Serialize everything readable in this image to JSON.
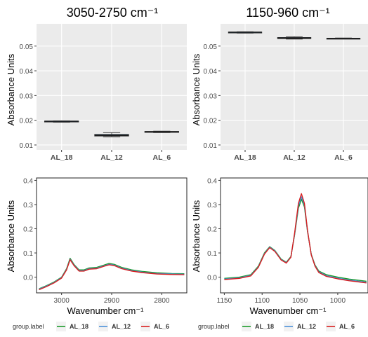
{
  "colors": {
    "panel_bg": "#ebebeb",
    "grid_major": "#ffffff",
    "axis_text": "#4d4d4d",
    "title_text": "#000000",
    "box_outline": "#333333",
    "box_fill": "#2c5f8a",
    "AL_18": "#1a9a2a",
    "AL_12": "#4a90d9",
    "AL_6": "#d81e1e"
  },
  "chart_data": [
    {
      "type": "box",
      "title": "3050-2750 cm⁻¹",
      "xlabel": "",
      "ylabel": "Absorbance Units",
      "categories": [
        "AL_18",
        "AL_12",
        "AL_6"
      ],
      "ylim": [
        0.008,
        0.059
      ],
      "yticks": [
        0.01,
        0.02,
        0.03,
        0.04,
        0.05
      ],
      "ytick_labels": [
        "0.01",
        "0.02",
        "0.03",
        "0.04",
        "0.05"
      ],
      "grid": true,
      "boxes": [
        {
          "category": "AL_18",
          "min": 0.0192,
          "q1": 0.0195,
          "median": 0.0196,
          "q3": 0.0197,
          "max": 0.0198
        },
        {
          "category": "AL_12",
          "min": 0.0133,
          "q1": 0.0136,
          "median": 0.0139,
          "q3": 0.0143,
          "max": 0.015
        },
        {
          "category": "AL_6",
          "min": 0.015,
          "q1": 0.0152,
          "median": 0.0153,
          "q3": 0.0155,
          "max": 0.0156
        }
      ]
    },
    {
      "type": "box",
      "title": "1150-960 cm⁻¹",
      "xlabel": "",
      "ylabel": "Absorbance Units",
      "categories": [
        "AL_18",
        "AL_12",
        "AL_6"
      ],
      "ylim": [
        0.008,
        0.059
      ],
      "yticks": [
        0.01,
        0.02,
        0.03,
        0.04,
        0.05
      ],
      "ytick_labels": [
        "0.01",
        "0.02",
        "0.03",
        "0.04",
        "0.05"
      ],
      "grid": true,
      "boxes": [
        {
          "category": "AL_18",
          "min": 0.0552,
          "q1": 0.0555,
          "median": 0.0556,
          "q3": 0.0557,
          "max": 0.0558
        },
        {
          "category": "AL_12",
          "min": 0.0528,
          "q1": 0.053,
          "median": 0.0532,
          "q3": 0.0535,
          "max": 0.0538
        },
        {
          "category": "AL_6",
          "min": 0.0529,
          "q1": 0.053,
          "median": 0.0531,
          "q3": 0.0532,
          "max": 0.0533
        }
      ]
    },
    {
      "type": "line",
      "title": "",
      "xlabel": "Wavenumber cm⁻¹",
      "ylabel": "Absorbance Units",
      "xlim": [
        3050,
        2750
      ],
      "ylim": [
        -0.065,
        0.41
      ],
      "xticks": [
        3000,
        2900,
        2800
      ],
      "xtick_labels": [
        "3000",
        "2900",
        "2800"
      ],
      "yticks": [
        0.0,
        0.1,
        0.2,
        0.3,
        0.4
      ],
      "ytick_labels": [
        "0.0",
        "0.1",
        "0.2",
        "0.3",
        "0.4"
      ],
      "grid": false,
      "series": [
        {
          "name": "AL_18",
          "x": [
            3045,
            3030,
            3015,
            3000,
            2990,
            2983,
            2975,
            2965,
            2955,
            2945,
            2930,
            2915,
            2905,
            2895,
            2880,
            2860,
            2840,
            2810,
            2780,
            2755
          ],
          "y": [
            -0.048,
            -0.035,
            -0.02,
            0.0,
            0.035,
            0.078,
            0.052,
            0.03,
            0.03,
            0.038,
            0.04,
            0.05,
            0.057,
            0.053,
            0.04,
            0.03,
            0.024,
            0.018,
            0.015,
            0.014
          ]
        },
        {
          "name": "AL_12",
          "x": [
            3045,
            3030,
            3015,
            3000,
            2990,
            2983,
            2975,
            2965,
            2955,
            2945,
            2930,
            2915,
            2905,
            2895,
            2880,
            2860,
            2840,
            2810,
            2780,
            2755
          ],
          "y": [
            -0.05,
            -0.037,
            -0.022,
            -0.002,
            0.032,
            0.074,
            0.049,
            0.027,
            0.027,
            0.035,
            0.037,
            0.047,
            0.053,
            0.05,
            0.037,
            0.027,
            0.021,
            0.015,
            0.013,
            0.012
          ]
        },
        {
          "name": "AL_6",
          "x": [
            3045,
            3030,
            3015,
            3000,
            2990,
            2983,
            2975,
            2965,
            2955,
            2945,
            2930,
            2915,
            2905,
            2895,
            2880,
            2860,
            2840,
            2810,
            2780,
            2755
          ],
          "y": [
            -0.052,
            -0.039,
            -0.024,
            -0.004,
            0.03,
            0.072,
            0.047,
            0.025,
            0.025,
            0.033,
            0.035,
            0.045,
            0.051,
            0.048,
            0.035,
            0.025,
            0.019,
            0.013,
            0.011,
            0.01
          ]
        }
      ]
    },
    {
      "type": "line",
      "title": "",
      "xlabel": "Wavenumber cm⁻¹",
      "ylabel": "Absorbance Units",
      "xlim": [
        1155,
        960
      ],
      "ylim": [
        -0.065,
        0.41
      ],
      "xticks": [
        1150,
        1100,
        1050,
        1000
      ],
      "xtick_labels": [
        "1150",
        "1100",
        "1050",
        "1000"
      ],
      "yticks": [
        0.0,
        0.1,
        0.2,
        0.3,
        0.4
      ],
      "ytick_labels": [
        "0.0",
        "0.1",
        "0.2",
        "0.3",
        "0.4"
      ],
      "grid": false,
      "series": [
        {
          "name": "AL_18",
          "x": [
            1150,
            1130,
            1115,
            1105,
            1097,
            1090,
            1083,
            1075,
            1068,
            1062,
            1057,
            1052,
            1048,
            1044,
            1040,
            1035,
            1030,
            1025,
            1015,
            1000,
            985,
            962
          ],
          "y": [
            -0.005,
            0.0,
            0.01,
            0.045,
            0.1,
            0.126,
            0.11,
            0.075,
            0.062,
            0.085,
            0.175,
            0.285,
            0.322,
            0.29,
            0.19,
            0.095,
            0.05,
            0.025,
            0.01,
            0.0,
            -0.008,
            -0.017
          ]
        },
        {
          "name": "AL_12",
          "x": [
            1150,
            1130,
            1115,
            1105,
            1097,
            1090,
            1083,
            1075,
            1068,
            1062,
            1057,
            1052,
            1048,
            1044,
            1040,
            1035,
            1030,
            1025,
            1015,
            1000,
            985,
            962
          ],
          "y": [
            -0.008,
            -0.003,
            0.007,
            0.042,
            0.097,
            0.124,
            0.108,
            0.073,
            0.06,
            0.083,
            0.178,
            0.295,
            0.332,
            0.298,
            0.192,
            0.093,
            0.047,
            0.022,
            0.006,
            -0.004,
            -0.012,
            -0.021
          ]
        },
        {
          "name": "AL_6",
          "x": [
            1150,
            1130,
            1115,
            1105,
            1097,
            1090,
            1083,
            1075,
            1068,
            1062,
            1057,
            1052,
            1048,
            1044,
            1040,
            1035,
            1030,
            1025,
            1015,
            1000,
            985,
            962
          ],
          "y": [
            -0.01,
            -0.005,
            0.005,
            0.04,
            0.095,
            0.122,
            0.106,
            0.071,
            0.058,
            0.082,
            0.182,
            0.305,
            0.345,
            0.305,
            0.195,
            0.092,
            0.045,
            0.019,
            0.003,
            -0.007,
            -0.015,
            -0.024
          ]
        }
      ]
    }
  ],
  "legends": [
    {
      "title": "group.label",
      "entries": [
        "AL_18",
        "AL_12",
        "AL_6"
      ]
    },
    {
      "title": "group.label",
      "entries": [
        "AL_18",
        "AL_12",
        "AL_6"
      ]
    }
  ]
}
